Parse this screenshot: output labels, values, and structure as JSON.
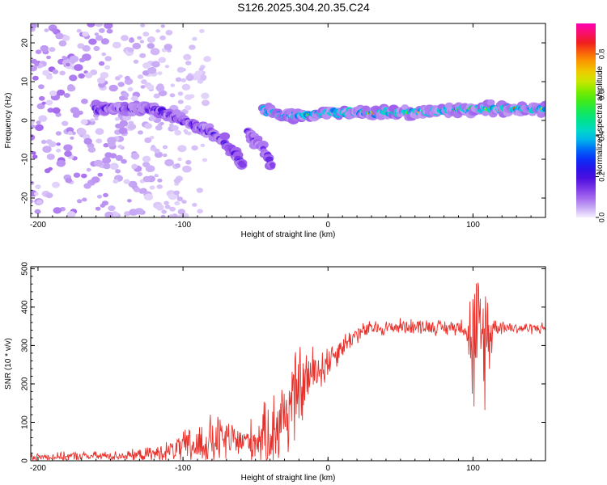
{
  "title": "S126.2025.304.20.35.C24",
  "chart_data": [
    {
      "type": "heatmap",
      "title": "S126.2025.304.20.35.C24",
      "xlabel": "Height of straight line (km)",
      "ylabel": "Frequency (Hz)",
      "xlim": [
        -205,
        150
      ],
      "ylim": [
        -25,
        25
      ],
      "xticks": [
        -200,
        -100,
        0,
        100
      ],
      "yticks": [
        -20,
        -10,
        0,
        10,
        20
      ],
      "colorbar": {
        "label": "Normalized spectral amplitude",
        "range": [
          0.0,
          0.95
        ],
        "ticks": [
          "0.0",
          "0.2",
          "0.4",
          "0.6",
          "0.8"
        ],
        "tick_values": [
          0.0,
          0.2,
          0.4,
          0.6,
          0.8
        ]
      },
      "features": [
        {
          "name": "scattered noise",
          "x_range": [
            -205,
            -100
          ],
          "freq_range": [
            -25,
            25
          ],
          "amplitude": 0.05
        },
        {
          "name": "descending trace",
          "points": [
            [
              -160,
              3
            ],
            [
              -120,
              3
            ],
            [
              -100,
              0
            ],
            [
              -80,
              -3
            ],
            [
              -65,
              -8
            ],
            [
              -58,
              -12
            ]
          ],
          "amplitude": 0.25
        },
        {
          "name": "secondary trace",
          "points": [
            [
              -55,
              -3
            ],
            [
              -45,
              -7
            ],
            [
              -38,
              -12
            ]
          ],
          "amplitude": 0.2
        },
        {
          "name": "steady carrier",
          "points": [
            [
              -45,
              3
            ],
            [
              -30,
              1
            ],
            [
              -10,
              1.5
            ],
            [
              0,
              2
            ],
            [
              50,
              2
            ],
            [
              100,
              3
            ],
            [
              150,
              3
            ]
          ],
          "amplitude": 0.8
        }
      ]
    },
    {
      "type": "line",
      "xlabel": "Height of straight line (km)",
      "ylabel": "SNR (10 * v/v)",
      "xlim": [
        -205,
        150
      ],
      "ylim": [
        0,
        505
      ],
      "xticks": [
        -200,
        -100,
        0,
        100
      ],
      "yticks": [
        0,
        100,
        200,
        300,
        400,
        500
      ],
      "color": "#e8302a",
      "series": [
        {
          "name": "SNR",
          "x": [
            -205,
            -190,
            -175,
            -160,
            -145,
            -130,
            -120,
            -110,
            -100,
            -90,
            -80,
            -70,
            -60,
            -50,
            -40,
            -30,
            -20,
            -15,
            -10,
            -5,
            0,
            10,
            20,
            30,
            40,
            50,
            60,
            70,
            80,
            90,
            95,
            100,
            105,
            110,
            115,
            120,
            130,
            140,
            150
          ],
          "values": [
            10,
            10,
            12,
            12,
            13,
            15,
            18,
            25,
            35,
            40,
            50,
            55,
            50,
            55,
            70,
            120,
            180,
            210,
            230,
            240,
            260,
            300,
            330,
            345,
            345,
            350,
            350,
            350,
            345,
            350,
            350,
            300,
            300,
            330,
            350,
            350,
            345,
            345,
            345
          ],
          "spread": [
            10,
            10,
            12,
            12,
            12,
            15,
            20,
            25,
            40,
            60,
            70,
            60,
            40,
            60,
            90,
            130,
            120,
            80,
            70,
            60,
            50,
            30,
            25,
            20,
            20,
            20,
            20,
            20,
            20,
            20,
            30,
            180,
            200,
            150,
            20,
            20,
            15,
            15,
            15
          ]
        }
      ]
    }
  ]
}
